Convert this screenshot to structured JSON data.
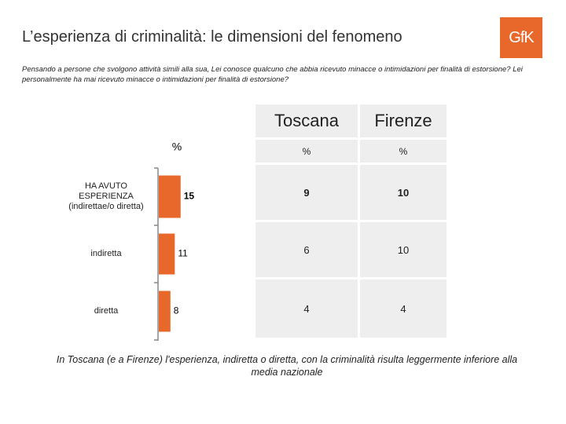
{
  "title": "L’esperienza di criminalità: le dimensioni del fenomeno",
  "logo": "GfK",
  "question": "Pensando a persone che svolgono attività simili alla sua, Lei conosce qualcuno che abbia ricevuto minacce o intimidazioni per finalità di estorsione? Lei personalmente ha mai ricevuto minacce o intimidazioni per finalità di estorsione?",
  "chart_data": {
    "type": "bar",
    "orientation": "horizontal",
    "unit_label": "%",
    "categories": [
      "HA AVUTO ESPERIENZA (indirettae/o diretta)",
      "indiretta",
      "diretta"
    ],
    "values": [
      15,
      11,
      8
    ],
    "color": "#e8672a"
  },
  "table": {
    "columns": [
      "Toscana",
      "Firenze"
    ],
    "units": [
      "%",
      "%"
    ],
    "rows": [
      [
        9,
        10
      ],
      [
        6,
        10
      ],
      [
        4,
        4
      ]
    ]
  },
  "footnote": "In Toscana (e a Firenze) l'esperienza, indiretta o diretta, con la criminalità risulta leggermente inferiore alla media nazionale"
}
